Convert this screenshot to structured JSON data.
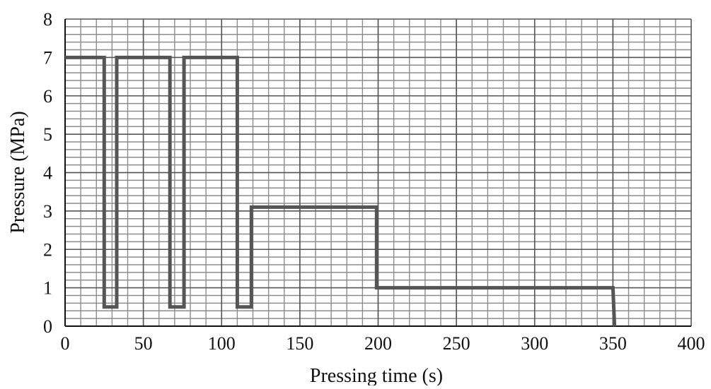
{
  "chart_data": {
    "type": "line",
    "title": "",
    "xlabel": "Pressing time (s)",
    "ylabel": "Pressure (MPa)",
    "xlim": [
      0,
      400
    ],
    "ylim": [
      0,
      8
    ],
    "x_ticks": [
      0,
      50,
      100,
      150,
      200,
      250,
      300,
      350,
      400
    ],
    "y_ticks": [
      0,
      1,
      2,
      3,
      4,
      5,
      6,
      7,
      8
    ],
    "x_tick_labels": [
      "0",
      "50",
      "100",
      "150",
      "200",
      "250",
      "300",
      "350",
      "400"
    ],
    "y_tick_labels": [
      "0",
      "1",
      "2",
      "3",
      "4",
      "5",
      "6",
      "7",
      "8"
    ],
    "grid": true,
    "minor_grid": {
      "x_step": 10,
      "y_step": 0.2
    },
    "legend": "none",
    "series": [
      {
        "x": [
          0,
          25,
          25,
          33,
          33,
          67,
          67,
          76,
          76,
          110,
          110,
          119,
          119,
          199,
          199,
          350,
          351
        ],
        "y": [
          7,
          7,
          0.5,
          0.5,
          7,
          7,
          0.5,
          0.5,
          7,
          7,
          0.5,
          0.5,
          3.1,
          3.1,
          1,
          1,
          0
        ]
      }
    ],
    "colors": {
      "line": "#555555",
      "minor_grid": "#8c8c8c",
      "major_grid": "#555555",
      "axis": "#111111"
    }
  }
}
